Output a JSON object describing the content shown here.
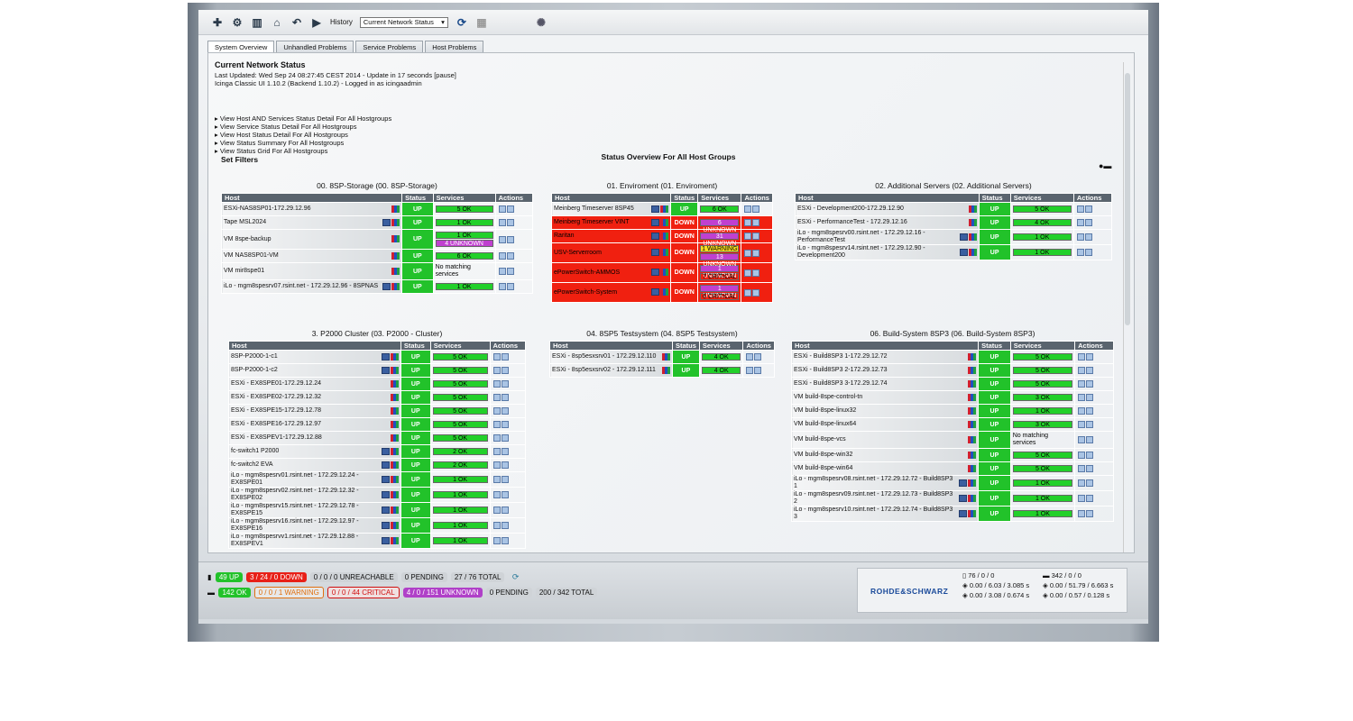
{
  "toolbar": {
    "history_label": "History",
    "history_value": "Current Network Status"
  },
  "tabs": [
    "System Overview",
    "Unhandled Problems",
    "Service Problems",
    "Host Problems"
  ],
  "header": {
    "title": "Current Network Status",
    "last_updated": "Last Updated: Wed Sep 24 08:27:45 CEST 2014 - Update in 17 seconds [pause]",
    "version": "Icinga Classic UI 1.10.2 (Backend 1.10.2) - Logged in as icingaadmin"
  },
  "view_links": [
    "View Host AND Services Status Detail For All Hostgroups",
    "View Service Status Detail For All Hostgroups",
    "View Host Status Detail For All Hostgroups",
    "View Status Summary For All Hostgroups",
    "View Status Grid For All Hostgroups"
  ],
  "set_filters": "Set Filters",
  "overview_title": "Status Overview For All Host Groups",
  "cols": {
    "host": "Host",
    "status": "Status",
    "services": "Services",
    "actions": "Actions"
  },
  "groups": [
    {
      "title": "00. 8SP-Storage (00. 8SP-Storage)",
      "rows": [
        {
          "host": "ESXi-NAS8SP01-172.29.12.96",
          "status": "UP",
          "svc": [
            [
              "5 OK",
              "ok"
            ]
          ],
          "icons": 1
        },
        {
          "host": "Tape MSL2024",
          "status": "UP",
          "svc": [
            [
              "1 OK",
              "ok"
            ]
          ],
          "icons": 2
        },
        {
          "host": "VM 8spe-backup",
          "status": "UP",
          "svc": [
            [
              "1 OK",
              "ok"
            ],
            [
              "4 UNKNOWN",
              "unk"
            ]
          ],
          "icons": 1
        },
        {
          "host": "VM NAS8SP01-VM",
          "status": "UP",
          "svc": [
            [
              "6 OK",
              "ok"
            ]
          ],
          "icons": 1
        },
        {
          "host": "VM mir8spe01",
          "status": "UP",
          "svc": [],
          "nomatch": "No matching services",
          "icons": 1
        },
        {
          "host": "iLo - mgm8spesrv07.rsint.net - 172.29.12.96 - 8SPNAS",
          "status": "UP",
          "svc": [
            [
              "1 OK",
              "ok"
            ]
          ],
          "icons": 2
        }
      ]
    },
    {
      "title": "01. Enviroment (01. Enviroment)",
      "rows": [
        {
          "host": "Meinberg Timeserver 8SP45",
          "status": "UP",
          "svc": [
            [
              "6 OK",
              "ok"
            ]
          ],
          "icons": 2
        },
        {
          "host": "Meinberg Timeserver VINT",
          "status": "DOWN",
          "svc": [
            [
              "6 UNKNOWN",
              "unk"
            ]
          ],
          "icons": 2
        },
        {
          "host": "Raritan",
          "status": "DOWN",
          "svc": [
            [
              "31 UNKNOWN",
              "unk"
            ]
          ],
          "icons": 2
        },
        {
          "host": "USV-Serverroom",
          "status": "DOWN",
          "svc": [
            [
              "1 WARNING",
              "warn"
            ],
            [
              "13 UNKNOWN",
              "unk"
            ]
          ],
          "icons": 2
        },
        {
          "host": "ePowerSwitch-AMMOS",
          "status": "DOWN",
          "svc": [
            [
              "1 UNKNOWN",
              "unk"
            ],
            [
              "7 CRITICAL",
              "crit"
            ]
          ],
          "icons": 2
        },
        {
          "host": "ePowerSwitch-System",
          "status": "DOWN",
          "svc": [
            [
              "1 UNKNOWN",
              "unk"
            ],
            [
              "6 CRITICAL",
              "crit"
            ]
          ],
          "icons": 2
        }
      ]
    },
    {
      "title": "02. Additional Servers (02. Additional Servers)",
      "rows": [
        {
          "host": "ESXi - Development200-172.29.12.90",
          "status": "UP",
          "svc": [
            [
              "5 OK",
              "ok"
            ]
          ],
          "icons": 1
        },
        {
          "host": "ESXi - PerformanceTest - 172.29.12.16",
          "status": "UP",
          "svc": [
            [
              "4 OK",
              "ok"
            ]
          ],
          "icons": 1
        },
        {
          "host": "iLo - mgm8spesrv00.rsint.net - 172.29.12.16 - PerformanceTest",
          "status": "UP",
          "svc": [
            [
              "1 OK",
              "ok"
            ]
          ],
          "icons": 2
        },
        {
          "host": "iLo - mgm8spesrv14.rsint.net - 172.29.12.90 - Development200",
          "status": "UP",
          "svc": [
            [
              "1 OK",
              "ok"
            ]
          ],
          "icons": 2
        }
      ]
    },
    {
      "title": "3. P2000 Cluster (03. P2000 - Cluster)",
      "rows": [
        {
          "host": "8SP-P2000-1-c1",
          "status": "UP",
          "svc": [
            [
              "5 OK",
              "ok"
            ]
          ],
          "icons": 2
        },
        {
          "host": "8SP-P2000-1-c2",
          "status": "UP",
          "svc": [
            [
              "5 OK",
              "ok"
            ]
          ],
          "icons": 2
        },
        {
          "host": "ESXi - EX8SPE01-172.29.12.24",
          "status": "UP",
          "svc": [
            [
              "5 OK",
              "ok"
            ]
          ],
          "icons": 1
        },
        {
          "host": "ESXi - EX8SPE02-172.29.12.32",
          "status": "UP",
          "svc": [
            [
              "5 OK",
              "ok"
            ]
          ],
          "icons": 1
        },
        {
          "host": "ESXi - EX8SPE15-172.29.12.78",
          "status": "UP",
          "svc": [
            [
              "5 OK",
              "ok"
            ]
          ],
          "icons": 1
        },
        {
          "host": "ESXi - EX8SPE16-172.29.12.97",
          "status": "UP",
          "svc": [
            [
              "5 OK",
              "ok"
            ]
          ],
          "icons": 1
        },
        {
          "host": "ESXi - EX8SPEV1-172.29.12.88",
          "status": "UP",
          "svc": [
            [
              "5 OK",
              "ok"
            ]
          ],
          "icons": 1
        },
        {
          "host": "fc-switch1 P2000",
          "status": "UP",
          "svc": [
            [
              "2 OK",
              "ok"
            ]
          ],
          "icons": 2
        },
        {
          "host": "fc-switch2 EVA",
          "status": "UP",
          "svc": [
            [
              "2 OK",
              "ok"
            ]
          ],
          "icons": 2
        },
        {
          "host": "iLo - mgm8spesrv01.rsint.net - 172.29.12.24 - EX8SPE01",
          "status": "UP",
          "svc": [
            [
              "1 OK",
              "ok"
            ]
          ],
          "icons": 2
        },
        {
          "host": "iLo - mgm8spesrv02.rsint.net - 172.29.12.32 - EX8SPE02",
          "status": "UP",
          "svc": [
            [
              "1 OK",
              "ok"
            ]
          ],
          "icons": 2
        },
        {
          "host": "iLo - mgm8spesrv15.rsint.net - 172.29.12.78 - EX8SPE15",
          "status": "UP",
          "svc": [
            [
              "1 OK",
              "ok"
            ]
          ],
          "icons": 2
        },
        {
          "host": "iLo - mgm8spesrv16.rsint.net - 172.29.12.97 - EX8SPE16",
          "status": "UP",
          "svc": [
            [
              "1 OK",
              "ok"
            ]
          ],
          "icons": 2
        },
        {
          "host": "iLo - mgm8spesrvv1.rsint.net - 172.29.12.88 - EX8SPEV1",
          "status": "UP",
          "svc": [
            [
              "1 OK",
              "ok"
            ]
          ],
          "icons": 2
        }
      ]
    },
    {
      "title": "04. 8SP5 Testsystem (04. 8SP5 Testsystem)",
      "rows": [
        {
          "host": "ESXi - 8sp5esxsrv01 - 172.29.12.110",
          "status": "UP",
          "svc": [
            [
              "4 OK",
              "ok"
            ]
          ],
          "icons": 1
        },
        {
          "host": "ESXi - 8sp5esxsrv02 - 172.29.12.111",
          "status": "UP",
          "svc": [
            [
              "4 OK",
              "ok"
            ]
          ],
          "icons": 1
        }
      ]
    },
    {
      "title": "06. Build-System 8SP3 (06. Build-System 8SP3)",
      "rows": [
        {
          "host": "ESXi - Build8SP3 1-172.29.12.72",
          "status": "UP",
          "svc": [
            [
              "5 OK",
              "ok"
            ]
          ],
          "icons": 1
        },
        {
          "host": "ESXi - Build8SP3 2-172.29.12.73",
          "status": "UP",
          "svc": [
            [
              "5 OK",
              "ok"
            ]
          ],
          "icons": 1
        },
        {
          "host": "ESXi - Build8SP3 3-172.29.12.74",
          "status": "UP",
          "svc": [
            [
              "5 OK",
              "ok"
            ]
          ],
          "icons": 1
        },
        {
          "host": "VM build-8spe-control-tn",
          "status": "UP",
          "svc": [
            [
              "3 OK",
              "ok"
            ]
          ],
          "icons": 1
        },
        {
          "host": "VM build-8spe-linux32",
          "status": "UP",
          "svc": [
            [
              "1 OK",
              "ok"
            ]
          ],
          "icons": 1
        },
        {
          "host": "VM build-8spe-linux64",
          "status": "UP",
          "svc": [
            [
              "3 OK",
              "ok"
            ]
          ],
          "icons": 1
        },
        {
          "host": "VM build-8spe-vcs",
          "status": "UP",
          "svc": [],
          "nomatch": "No matching services",
          "icons": 1
        },
        {
          "host": "VM build-8spe-win32",
          "status": "UP",
          "svc": [
            [
              "5 OK",
              "ok"
            ]
          ],
          "icons": 1
        },
        {
          "host": "VM build-8spe-win64",
          "status": "UP",
          "svc": [
            [
              "5 OK",
              "ok"
            ]
          ],
          "icons": 1
        },
        {
          "host": "iLo - mgm8spesrv08.rsint.net - 172.29.12.72 - Build8SP3 1",
          "status": "UP",
          "svc": [
            [
              "1 OK",
              "ok"
            ]
          ],
          "icons": 2
        },
        {
          "host": "iLo - mgm8spesrv09.rsint.net - 172.29.12.73 - Build8SP3 2",
          "status": "UP",
          "svc": [
            [
              "1 OK",
              "ok"
            ]
          ],
          "icons": 2
        },
        {
          "host": "iLo - mgm8spesrv10.rsint.net - 172.29.12.74 - Build8SP3 3",
          "status": "UP",
          "svc": [
            [
              "1 OK",
              "ok"
            ]
          ],
          "icons": 2
        }
      ]
    }
  ],
  "footer": {
    "hosts": [
      [
        "49 UP",
        "g"
      ],
      [
        "3 / 24 / 0 DOWN",
        "r"
      ],
      [
        "0 / 0 / 0 UNREACHABLE",
        "gr"
      ],
      [
        "0 PENDING",
        "gr"
      ],
      [
        "27 / 76 TOTAL",
        "gr"
      ]
    ],
    "services": [
      [
        "142 OK",
        "g"
      ],
      [
        "0 / 0 / 1 WARNING",
        "or"
      ],
      [
        "0 / 0 / 44 CRITICAL",
        "cr"
      ],
      [
        "4 / 0 / 151 UNKNOWN",
        "pu"
      ],
      [
        "0 PENDING",
        "gr"
      ],
      [
        "200 / 342 TOTAL",
        "gr"
      ]
    ],
    "brand": "ROHDE&SCHWARZ",
    "perf_left": [
      "76 / 0 / 0",
      "0.00 / 6.03 / 3.085 s",
      "0.00 / 3.08 / 0.674 s"
    ],
    "perf_right": [
      "342 / 0 / 0",
      "0.00 / 51.79 / 6.663 s",
      "0.00 / 0.57 / 0.128 s"
    ]
  }
}
